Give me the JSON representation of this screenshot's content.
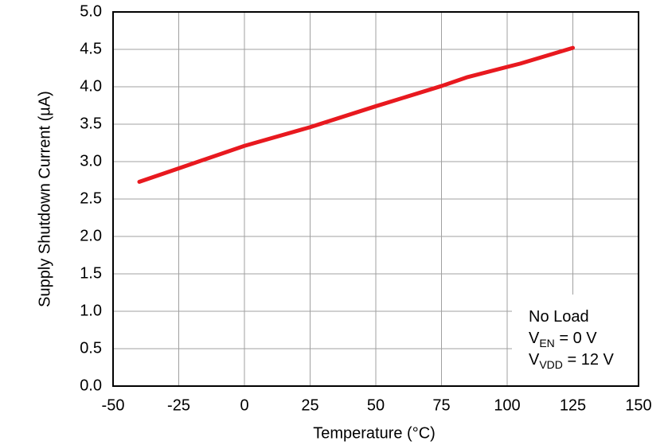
{
  "chart_data": {
    "type": "line",
    "xlabel": "Temperature (°C)",
    "ylabel": "Supply Shutdown Current (µA)",
    "x": [
      -40,
      -25,
      0,
      25,
      50,
      75,
      85,
      105,
      125
    ],
    "series": [
      {
        "color": "#e8191f",
        "values": [
          2.73,
          2.91,
          3.21,
          3.46,
          3.74,
          4.01,
          4.13,
          4.31,
          4.52
        ]
      }
    ],
    "xlim": [
      -50,
      150
    ],
    "xticks": [
      -50,
      -25,
      0,
      25,
      50,
      75,
      100,
      125,
      150
    ],
    "ylim": [
      0,
      5
    ],
    "yticks": [
      {
        "value": 0,
        "label": "0.0"
      },
      0.5,
      {
        "value": 1,
        "label": "1.0"
      },
      1.5,
      {
        "value": 2,
        "label": "2.0"
      },
      2.5,
      {
        "value": 3,
        "label": "3.0"
      },
      3.5,
      {
        "value": 4,
        "label": "4.0"
      },
      4.5,
      {
        "value": 5,
        "label": "5.0"
      }
    ],
    "grid": true,
    "annotations": [
      {
        "text": "No Load"
      },
      {
        "text": "V",
        "sub": "EN",
        "rest": " = 0 V"
      },
      {
        "text": "V",
        "sub": "VDD",
        "rest": " = 12 V"
      }
    ]
  }
}
